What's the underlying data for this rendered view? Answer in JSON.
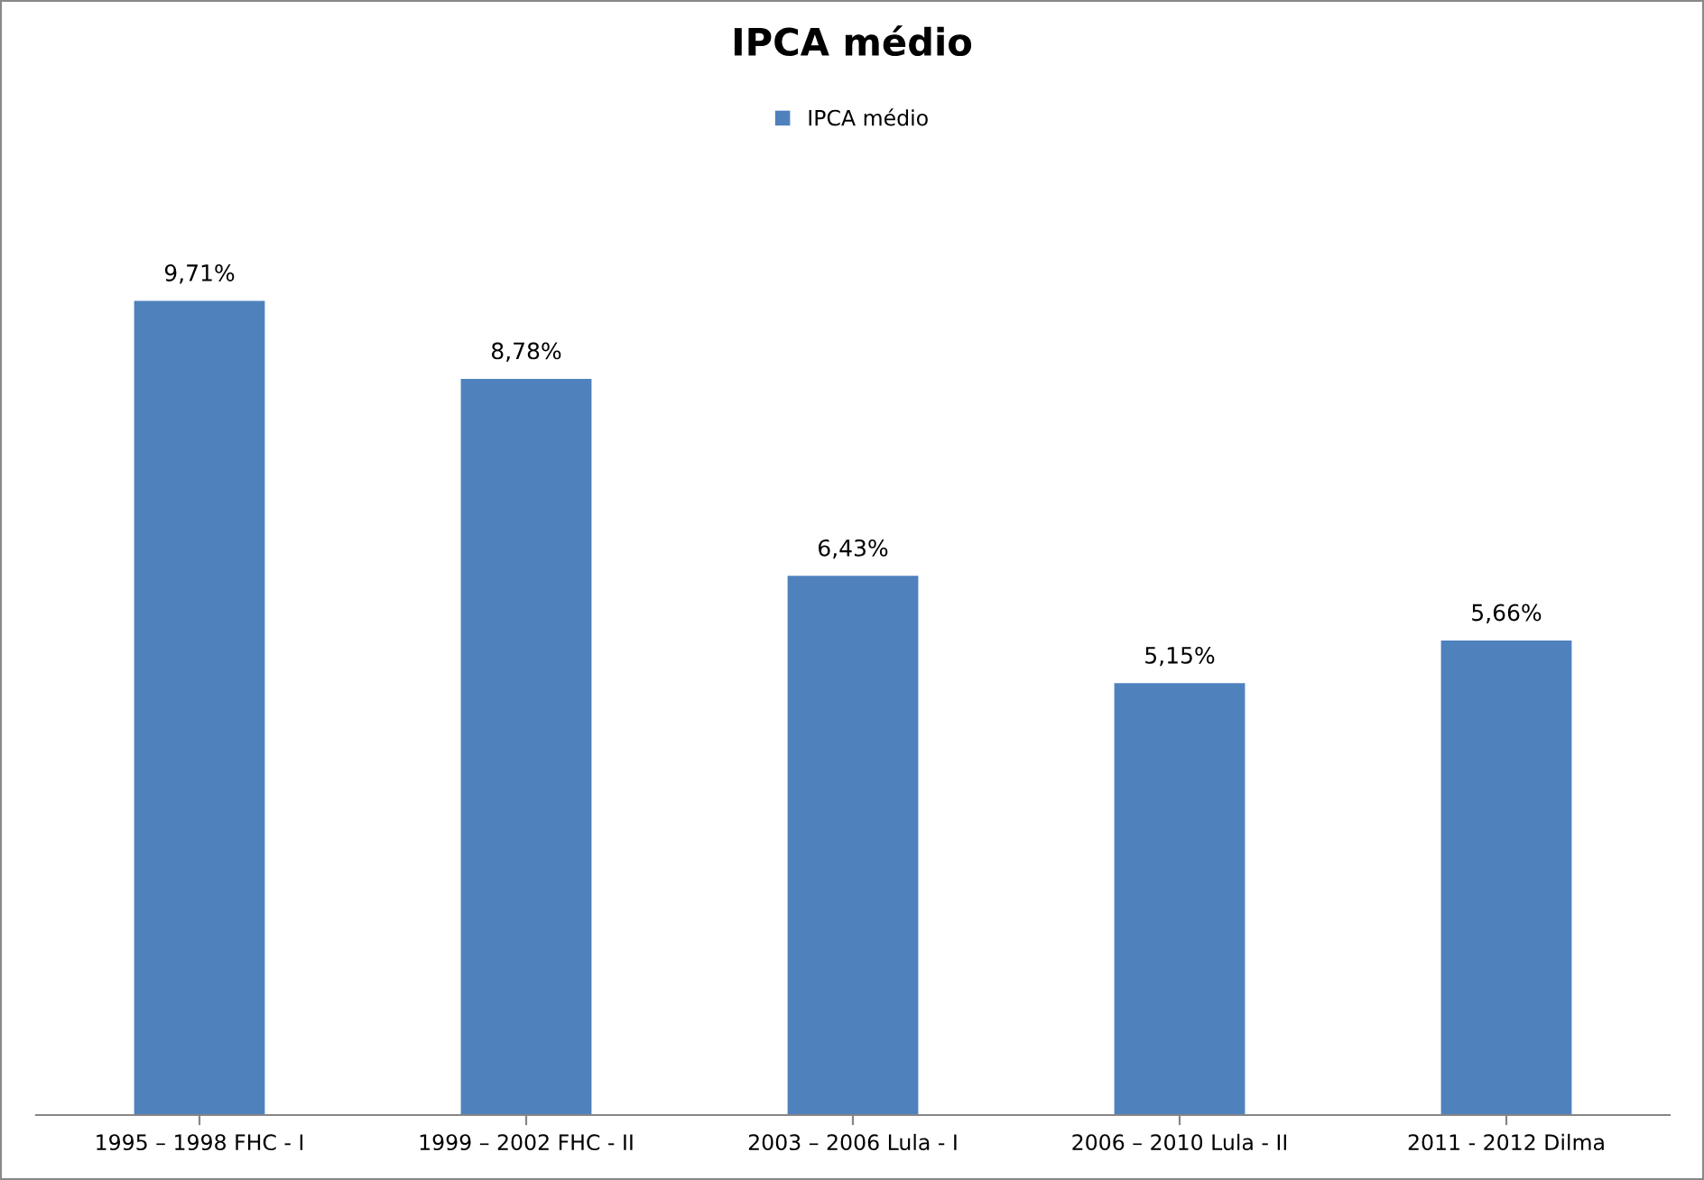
{
  "chart_data": {
    "type": "bar",
    "title": "IPCA médio",
    "categories": [
      "1995 – 1998 FHC - I",
      "1999 – 2002 FHC - II",
      "2003 – 2006 Lula - I",
      "2006 – 2010 Lula - II",
      "2011 - 2012 Dilma"
    ],
    "series": [
      {
        "name": "IPCA médio",
        "color": "#4f81bd",
        "values": [
          9.71,
          8.78,
          6.43,
          5.15,
          5.66
        ],
        "value_labels": [
          "9,71%",
          "8,78%",
          "6,43%",
          "5,15%",
          "5,66%"
        ]
      }
    ],
    "tick_labels": "x",
    "legend": "top",
    "grid": false
  }
}
